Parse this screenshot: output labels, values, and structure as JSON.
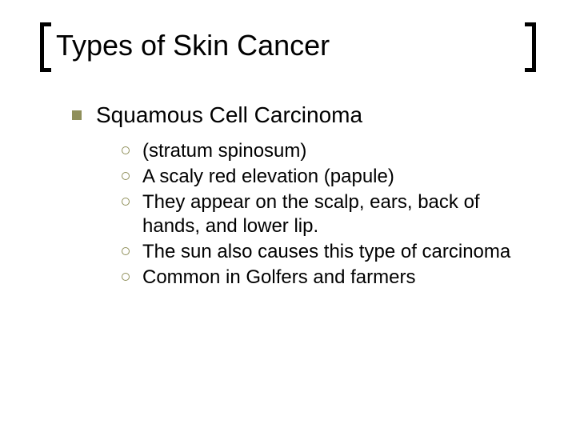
{
  "colors": {
    "background": "#ffffff",
    "text": "#000000",
    "bullet": "#8f8f5a",
    "bracket": "#000000"
  },
  "typography": {
    "title_fontsize": 36,
    "level1_fontsize": 28,
    "level2_fontsize": 24,
    "font_family": "Arial"
  },
  "slide": {
    "title": "Types of Skin Cancer",
    "level1": {
      "text": "Squamous Cell Carcinoma"
    },
    "level2": [
      {
        "text": "(stratum spinosum)"
      },
      {
        "text": "A scaly red elevation (papule)"
      },
      {
        "text": "They appear on the scalp, ears, back of hands, and lower lip."
      },
      {
        "text": "The sun also causes this type of carcinoma"
      },
      {
        "text": "Common in Golfers and farmers"
      }
    ]
  }
}
